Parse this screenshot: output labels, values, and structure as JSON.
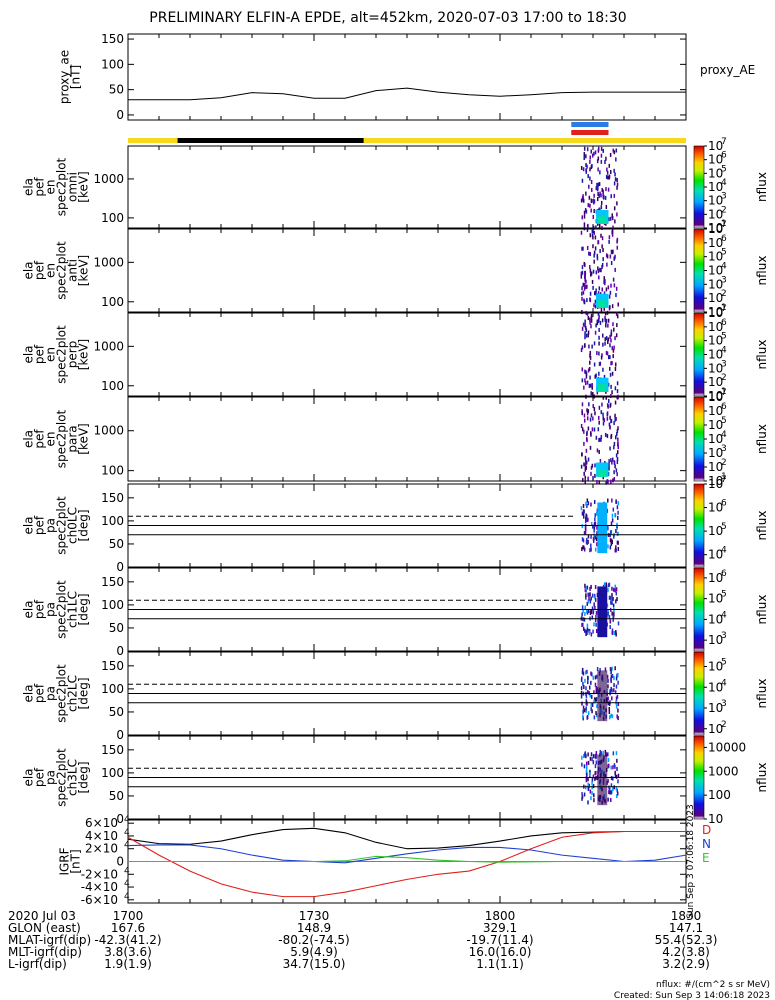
{
  "title": "PRELIMINARY ELFIN-A EPDE, alt=452km, 2020-07-03 17:00 to 18:30",
  "colors": {
    "proxy_line": "#000000",
    "bar_yellow": "#f7d81b",
    "bar_black": "#000000",
    "bar_blue": "#2a7be6",
    "bar_red": "#e0201b",
    "grf_d": "#e0201b",
    "grf_n": "#1d3fd4",
    "grf_e": "#34c62a"
  },
  "chart_data": [
    {
      "name": "proxy_ae",
      "type": "line",
      "ylabel_lines": [
        "proxy_ae",
        "[nT]"
      ],
      "legend": "proxy_AE",
      "ylim": [
        -10,
        160
      ],
      "yticks": [
        "0",
        "50",
        "100",
        "150"
      ],
      "ytick_values": [
        0,
        50,
        100,
        150
      ],
      "x": [
        0,
        5,
        10,
        15,
        20,
        25,
        30,
        35,
        40,
        45,
        50,
        55,
        60,
        65,
        70,
        75,
        80,
        85,
        90
      ],
      "y": [
        30,
        30,
        30,
        34,
        44,
        42,
        33,
        33,
        48,
        53,
        45,
        40,
        37,
        40,
        44,
        45,
        45,
        45,
        45
      ]
    },
    {
      "name": "energy-omni",
      "type": "heatmap",
      "ylabel_lines": [
        "ela",
        "pef",
        "en",
        "spec2plot",
        "omni",
        "[keV]"
      ],
      "ylim": [
        55,
        7000
      ],
      "ylog": true,
      "yticks": [
        "100",
        "1000"
      ],
      "ytick_values": [
        100,
        1000
      ],
      "colorbar": {
        "label": "nflux",
        "scale": "log",
        "range": [
          10,
          10000000
        ],
        "tick_exponents": [
          "1",
          "2",
          "3",
          "4",
          "5",
          "6",
          "7"
        ],
        "tick_labels": [
          "10",
          "10",
          "10",
          "10",
          "10",
          "10",
          "10"
        ]
      }
    },
    {
      "name": "energy-anti",
      "type": "heatmap",
      "ylabel_lines": [
        "ela",
        "pef",
        "en",
        "spec2plot",
        "anti",
        "[keV]"
      ],
      "ylim": [
        55,
        7000
      ],
      "ylog": true,
      "yticks": [
        "100",
        "1000"
      ],
      "ytick_values": [
        100,
        1000
      ],
      "colorbar": {
        "label": "nflux",
        "scale": "log",
        "range": [
          10,
          10000000
        ],
        "tick_exponents": [
          "1",
          "2",
          "3",
          "4",
          "5",
          "6",
          "7"
        ],
        "tick_labels": [
          "10",
          "10",
          "10",
          "10",
          "10",
          "10",
          "10"
        ]
      }
    },
    {
      "name": "energy-perp",
      "type": "heatmap",
      "ylabel_lines": [
        "ela",
        "pef",
        "en",
        "spec2plot",
        "perp",
        "[keV]"
      ],
      "ylim": [
        55,
        7000
      ],
      "ylog": true,
      "yticks": [
        "100",
        "1000"
      ],
      "ytick_values": [
        100,
        1000
      ],
      "colorbar": {
        "label": "nflux",
        "scale": "log",
        "range": [
          10,
          10000000
        ],
        "tick_exponents": [
          "1",
          "2",
          "3",
          "4",
          "5",
          "6",
          "7"
        ],
        "tick_labels": [
          "10",
          "10",
          "10",
          "10",
          "10",
          "10",
          "10"
        ]
      }
    },
    {
      "name": "energy-para",
      "type": "heatmap",
      "ylabel_lines": [
        "ela",
        "pef",
        "en",
        "spec2plot",
        "para",
        "[keV]"
      ],
      "ylim": [
        55,
        7000
      ],
      "ylog": true,
      "yticks": [
        "100",
        "1000"
      ],
      "ytick_values": [
        100,
        1000
      ],
      "colorbar": {
        "label": "nflux",
        "scale": "log",
        "range": [
          10,
          10000000
        ],
        "tick_exponents": [
          "1",
          "2",
          "3",
          "4",
          "5",
          "6",
          "7"
        ],
        "tick_labels": [
          "10",
          "10",
          "10",
          "10",
          "10",
          "10",
          "10"
        ]
      }
    },
    {
      "name": "pitch-ch0",
      "type": "heatmap",
      "ylabel_lines": [
        "ela",
        "pef",
        "pa",
        "spec2plot",
        "ch0LC",
        "[deg]"
      ],
      "ylim": [
        0,
        180
      ],
      "yticks": [
        "0",
        "50",
        "100",
        "150"
      ],
      "ytick_values": [
        0,
        50,
        100,
        150
      ],
      "colorbar": {
        "label": "nflux",
        "scale": "log",
        "range": [
          3000,
          10000000
        ],
        "tick_exponents": [
          "4",
          "5",
          "6",
          "7"
        ],
        "tick_labels": [
          "10",
          "10",
          "10",
          "10"
        ]
      }
    },
    {
      "name": "pitch-ch1",
      "type": "heatmap",
      "ylabel_lines": [
        "ela",
        "pef",
        "pa",
        "spec2plot",
        "ch1LC",
        "[deg]"
      ],
      "ylim": [
        0,
        180
      ],
      "yticks": [
        "0",
        "50",
        "100",
        "150"
      ],
      "ytick_values": [
        0,
        50,
        100,
        150
      ],
      "colorbar": {
        "label": "nflux",
        "scale": "log",
        "range": [
          300,
          3000000
        ],
        "tick_exponents": [
          "3",
          "4",
          "5",
          "6"
        ],
        "tick_labels": [
          "10",
          "10",
          "10",
          "10"
        ]
      }
    },
    {
      "name": "pitch-ch2",
      "type": "heatmap",
      "ylabel_lines": [
        "ela",
        "pef",
        "pa",
        "spec2plot",
        "ch2LC",
        "[deg]"
      ],
      "ylim": [
        0,
        180
      ],
      "yticks": [
        "0",
        "50",
        "100",
        "150"
      ],
      "ytick_values": [
        0,
        50,
        100,
        150
      ],
      "colorbar": {
        "label": "nflux",
        "scale": "log",
        "range": [
          50,
          500000
        ],
        "tick_exponents": [
          "2",
          "3",
          "4",
          "5"
        ],
        "tick_labels": [
          "10",
          "10",
          "10",
          "10"
        ]
      }
    },
    {
      "name": "pitch-ch3",
      "type": "heatmap",
      "ylabel_lines": [
        "ela",
        "pef",
        "pa",
        "spec2plot",
        "ch3LC",
        "[deg]"
      ],
      "ylim": [
        0,
        180
      ],
      "yticks": [
        "0",
        "50",
        "100",
        "150"
      ],
      "ytick_values": [
        0,
        50,
        100,
        150
      ],
      "colorbar": {
        "label": "nflux",
        "scale": "log",
        "range": [
          10,
          30000
        ],
        "tick_labels": [
          "10",
          "100",
          "1000",
          "10000"
        ]
      }
    },
    {
      "name": "igrf",
      "type": "line",
      "ylabel_lines": [
        "IGRF",
        "[nT]"
      ],
      "ylim": [
        -65000,
        65000
      ],
      "yticks": [
        "-6×10",
        "-4×10",
        "-2×10",
        "0",
        "2×10",
        "4×10",
        "6×10"
      ],
      "ytick_values": [
        -60000,
        -40000,
        -20000,
        0,
        20000,
        40000,
        60000
      ],
      "ytick_exponent": "4",
      "legend": [
        "D",
        "N",
        "E"
      ],
      "x": [
        0,
        5,
        10,
        15,
        20,
        25,
        30,
        35,
        40,
        45,
        50,
        55,
        60,
        65,
        70,
        75,
        80,
        85,
        90
      ],
      "series": [
        {
          "values": [
            35000,
            28000,
            27000,
            32000,
            42000,
            50000,
            52000,
            45000,
            30000,
            20000,
            21000,
            25000,
            32000,
            40000,
            45000,
            46000,
            47000,
            47000,
            47000
          ]
        },
        {
          "name": "D",
          "values": [
            38000,
            10000,
            -15000,
            -35000,
            -48000,
            -55000,
            -55000,
            -48000,
            -38000,
            -28000,
            -20000,
            -15000,
            0,
            20000,
            38000,
            45000,
            47000,
            47000,
            47000
          ]
        },
        {
          "name": "N",
          "values": [
            25000,
            26000,
            26000,
            20000,
            10000,
            2000,
            0,
            -2000,
            5000,
            12000,
            18000,
            22000,
            22000,
            18000,
            10000,
            5000,
            0,
            2000,
            10000
          ]
        },
        {
          "name": "E",
          "values": [
            0,
            0,
            0,
            0,
            0,
            0,
            0,
            1000,
            8000,
            6000,
            2000,
            0,
            -1000,
            -500,
            0,
            0,
            0,
            0,
            0
          ]
        }
      ]
    }
  ],
  "xaxis": {
    "ticks": [
      "1700",
      "1730",
      "1800",
      "1830"
    ],
    "tick_values": [
      0,
      30,
      60,
      90
    ],
    "ephemeris": [
      {
        "label": "2020 Jul 03",
        "values": [
          "1700",
          "1730",
          "1800",
          "1830"
        ]
      },
      {
        "label": "GLON (east)",
        "values": [
          "167.6",
          "148.9",
          "329.1",
          "147.1"
        ]
      },
      {
        "label": "MLAT-igrf(dip)",
        "values": [
          "-42.3(41.2)",
          "-80.2(-74.5)",
          "-19.7(11.4)",
          "55.4(52.3)"
        ]
      },
      {
        "label": "MLT-igrf(dip)",
        "values": [
          "3.8(3.6)",
          "5.9(4.9)",
          "16.0(16.0)",
          "4.2(3.8)"
        ]
      },
      {
        "label": "L-igrf(dip)",
        "values": [
          "1.9(1.9)",
          "34.7(15.0)",
          "1.1(1.1)",
          "3.2(2.9)"
        ]
      }
    ]
  },
  "footer": {
    "units": "nflux: #/(cm^2 s sr MeV)",
    "created": "Created: Sun Sep  3 14:06:18 2023"
  },
  "side_stamp": "Sun Sep  3 07:06:18 2023"
}
